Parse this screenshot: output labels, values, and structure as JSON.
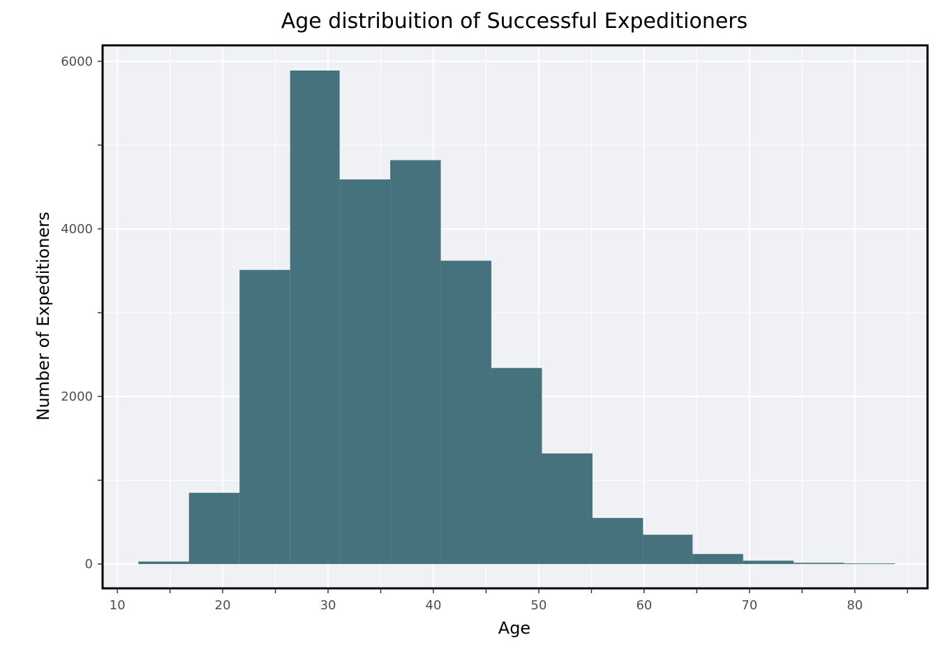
{
  "colors": {
    "bar": "#3f6d79",
    "panel_background": "#eff1f5",
    "grid": "#ffffff",
    "frame": "#000000"
  },
  "chart_data": {
    "type": "bar",
    "title": "Age distribuition of Successful Expeditioners",
    "xlabel": "Age",
    "ylabel": "Number of Expeditioners",
    "xlim": [
      8.6,
      86.9
    ],
    "ylim": [
      -290,
      6190
    ],
    "x_ticks": [
      10,
      20,
      30,
      40,
      50,
      60,
      70,
      80
    ],
    "y_ticks": [
      0,
      2000,
      4000,
      6000
    ],
    "grid": true,
    "bins": [
      {
        "start": 12.0,
        "end": 16.8,
        "count": 30
      },
      {
        "start": 16.8,
        "end": 21.6,
        "count": 850
      },
      {
        "start": 21.6,
        "end": 26.4,
        "count": 3510
      },
      {
        "start": 26.4,
        "end": 31.1,
        "count": 5890
      },
      {
        "start": 31.1,
        "end": 35.9,
        "count": 4590
      },
      {
        "start": 35.9,
        "end": 40.7,
        "count": 4820
      },
      {
        "start": 40.7,
        "end": 45.5,
        "count": 3620
      },
      {
        "start": 45.5,
        "end": 50.3,
        "count": 2340
      },
      {
        "start": 50.3,
        "end": 55.1,
        "count": 1320
      },
      {
        "start": 55.1,
        "end": 59.9,
        "count": 550
      },
      {
        "start": 59.9,
        "end": 64.6,
        "count": 350
      },
      {
        "start": 64.6,
        "end": 69.4,
        "count": 120
      },
      {
        "start": 69.4,
        "end": 74.2,
        "count": 40
      },
      {
        "start": 74.2,
        "end": 79.0,
        "count": 15
      },
      {
        "start": 79.0,
        "end": 83.8,
        "count": 8
      }
    ]
  }
}
